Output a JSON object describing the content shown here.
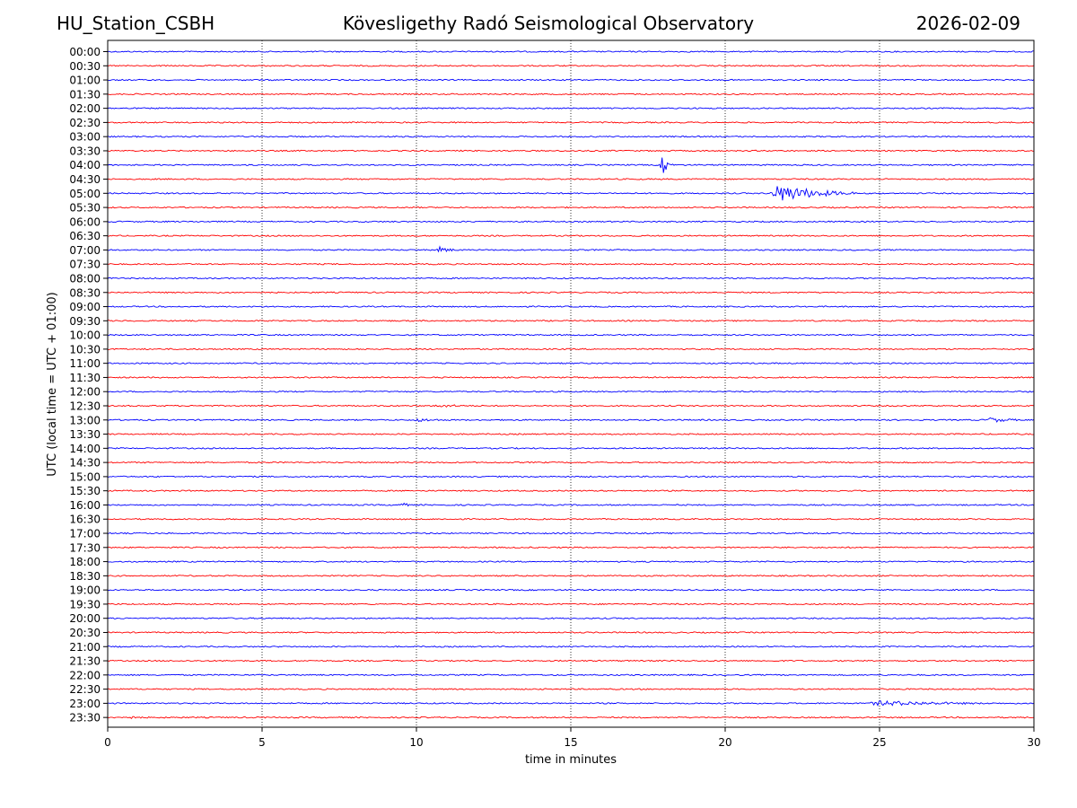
{
  "header": {
    "station": "HU_Station_CSBH",
    "title": "Kövesligethy Radó Seismological Observatory",
    "date": "2026-02-09"
  },
  "chart_data": {
    "type": "line",
    "subtype": "helicorder",
    "xlabel": "time in minutes",
    "ylabel": "UTC (local time = UTC + 01:00)",
    "xlim": [
      0,
      30
    ],
    "x_ticks": [
      "0",
      "5",
      "10",
      "15",
      "20",
      "25",
      "30"
    ],
    "grid": "vertical dotted at every 5 minutes",
    "trace_colors": [
      "#0000ff",
      "#ff0000"
    ],
    "rows": [
      "00:00",
      "00:30",
      "01:00",
      "01:30",
      "02:00",
      "02:30",
      "03:00",
      "03:30",
      "04:00",
      "04:30",
      "05:00",
      "05:30",
      "06:00",
      "06:30",
      "07:00",
      "07:30",
      "08:00",
      "08:30",
      "09:00",
      "09:30",
      "10:00",
      "10:30",
      "11:00",
      "11:30",
      "12:00",
      "12:30",
      "13:00",
      "13:30",
      "14:00",
      "14:30",
      "15:00",
      "15:30",
      "16:00",
      "16:30",
      "17:00",
      "17:30",
      "18:00",
      "18:30",
      "19:00",
      "19:30",
      "20:00",
      "20:30",
      "21:00",
      "21:30",
      "22:00",
      "22:30",
      "23:00",
      "23:30"
    ],
    "events": [
      {
        "row": "04:00",
        "start_min": 17.9,
        "end_min": 18.3,
        "peak_amplitude": 12
      },
      {
        "row": "05:00",
        "start_min": 21.4,
        "end_min": 24.2,
        "peak_amplitude": 10
      },
      {
        "row": "07:00",
        "start_min": 10.6,
        "end_min": 11.5,
        "peak_amplitude": 4
      },
      {
        "row": "12:30",
        "start_min": 10.5,
        "end_min": 12.5,
        "peak_amplitude": 2
      },
      {
        "row": "13:00",
        "start_min": 9.8,
        "end_min": 11.8,
        "peak_amplitude": 2
      },
      {
        "row": "13:00",
        "start_min": 28.4,
        "end_min": 30.0,
        "peak_amplitude": 3
      },
      {
        "row": "16:00",
        "start_min": 9.4,
        "end_min": 9.9,
        "peak_amplitude": 4
      },
      {
        "row": "23:00",
        "start_min": 24.4,
        "end_min": 30.0,
        "peak_amplitude": 3
      },
      {
        "row": "23:30",
        "start_min": 0.2,
        "end_min": 2.2,
        "peak_amplitude": 2
      }
    ]
  }
}
